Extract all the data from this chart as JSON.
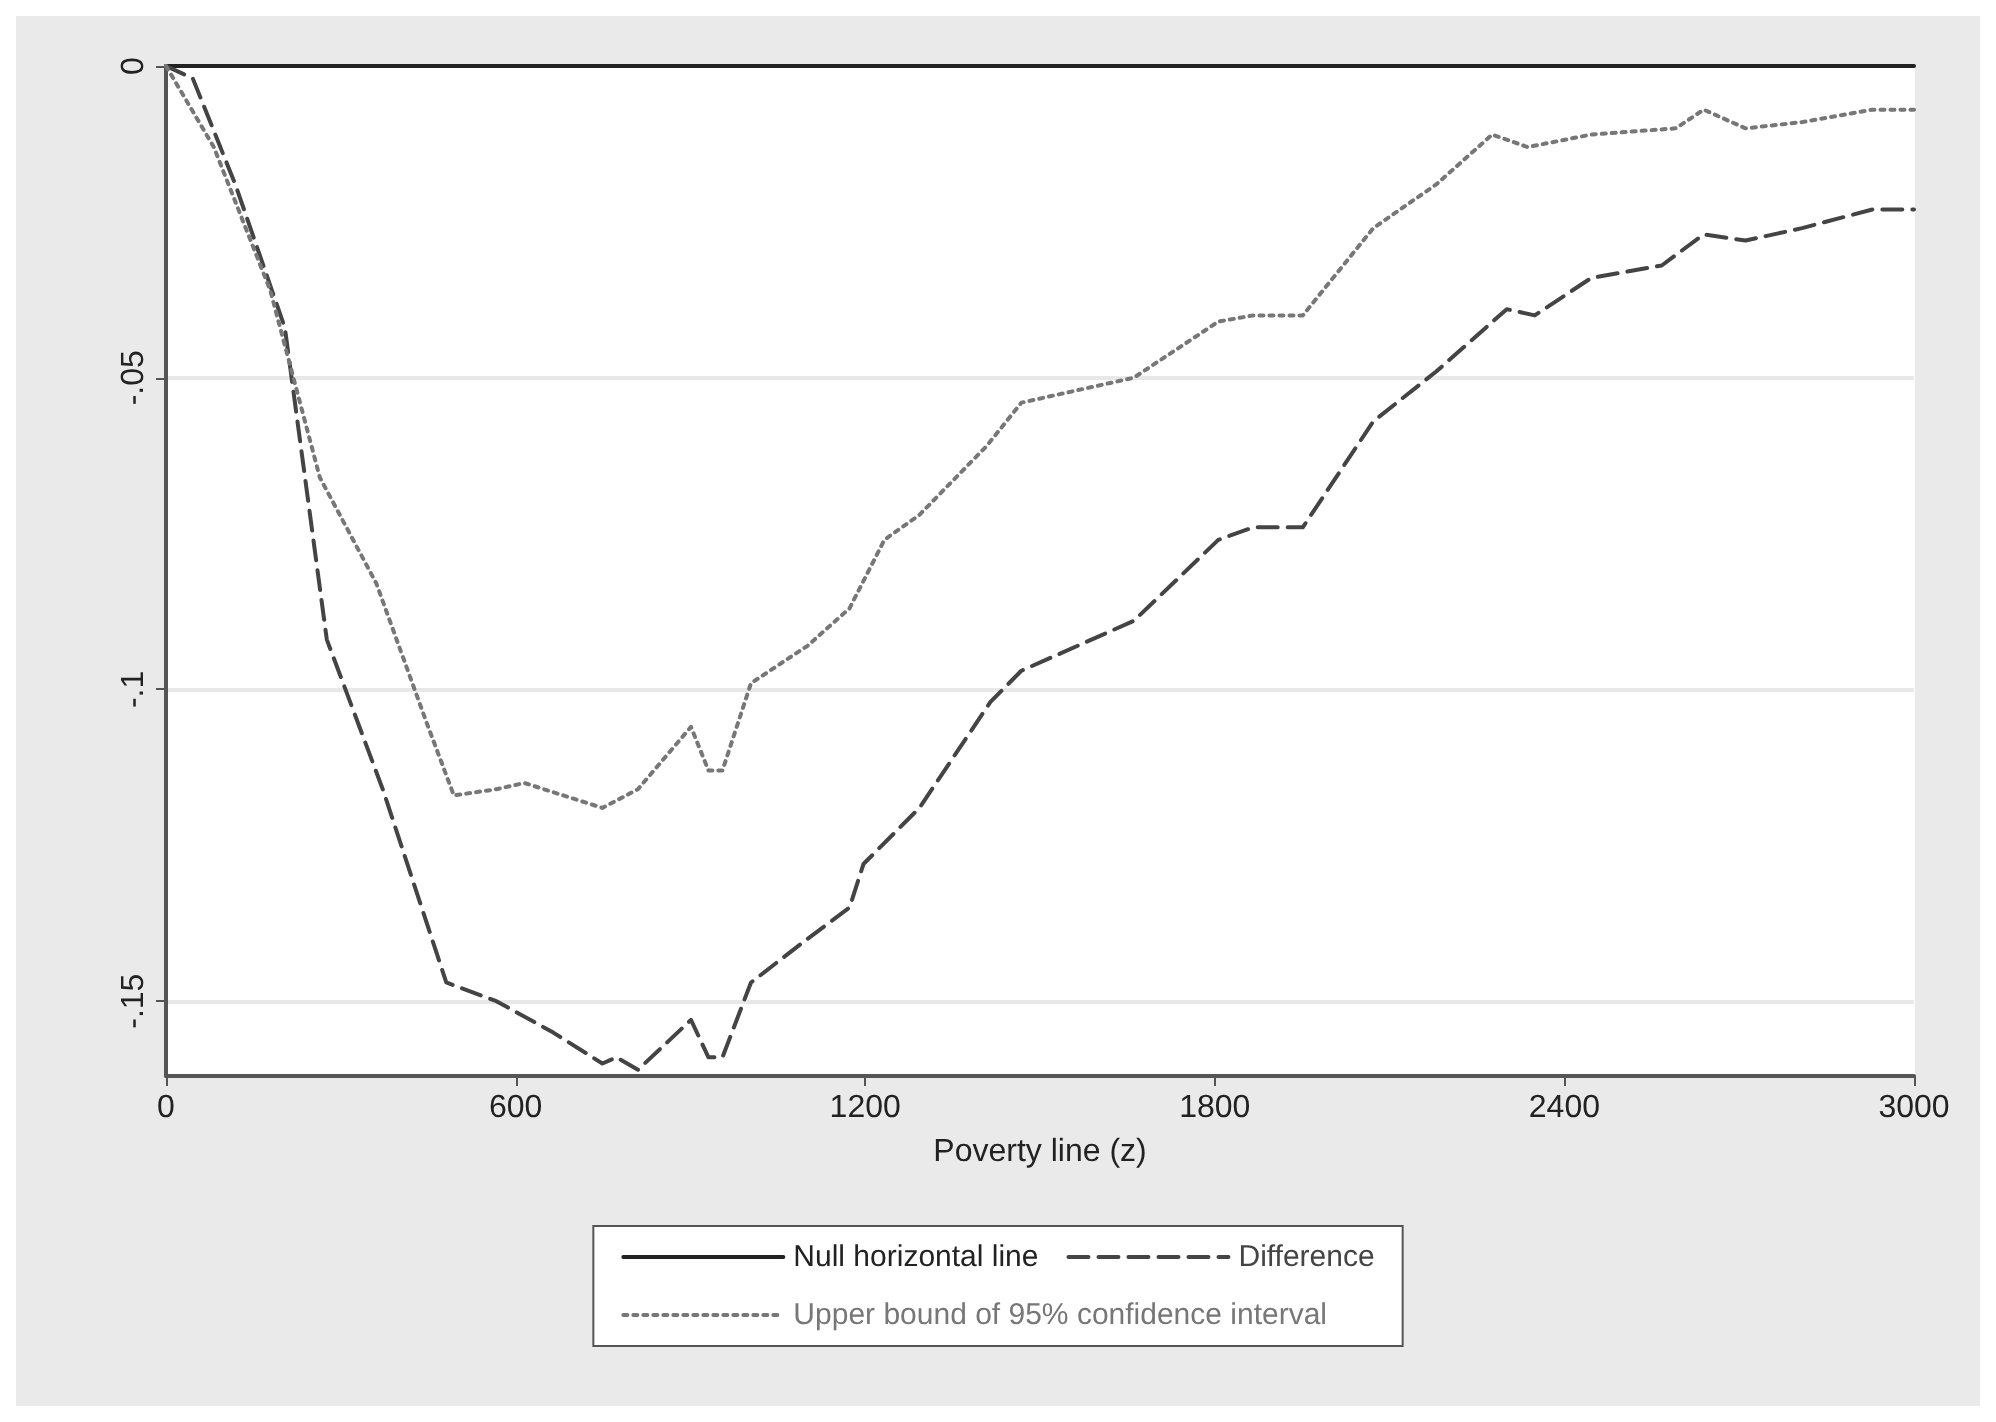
{
  "chart_data": {
    "type": "line",
    "xlabel": "Poverty line (z)",
    "xlim": [
      0,
      3000
    ],
    "xticks": [
      0,
      600,
      1200,
      1800,
      2400,
      3000
    ],
    "ylim": [
      -0.162,
      0
    ],
    "yticks": [
      0,
      {
        "value": -0.05,
        "label": "-.05"
      },
      {
        "value": -0.1,
        "label": "-.1"
      },
      {
        "value": -0.15,
        "label": "-.15"
      }
    ],
    "grid": "y",
    "legend": "bottom",
    "marker": "none",
    "series": [
      {
        "name": "Null horizontal line",
        "color": "#222222",
        "line_style": "solid",
        "x": [
          0,
          3000
        ],
        "values": [
          0,
          0
        ]
      },
      {
        "name": "Difference",
        "color": "#444444",
        "line_style": "dashed",
        "x": [
          0,
          46,
          119,
          204,
          276,
          372,
          481,
          567,
          664,
          749,
          773,
          810,
          901,
          931,
          955,
          1004,
          1101,
          1173,
          1197,
          1293,
          1415,
          1468,
          1661,
          1806,
          1866,
          1951,
          2072,
          2180,
          2301,
          2349,
          2446,
          2567,
          2639,
          2711,
          2808,
          2929,
          3000
        ],
        "values": [
          0,
          -0.002,
          -0.019,
          -0.042,
          -0.092,
          -0.116,
          -0.147,
          -0.15,
          -0.155,
          -0.16,
          -0.159,
          -0.161,
          -0.153,
          -0.159,
          -0.159,
          -0.147,
          -0.14,
          -0.135,
          -0.128,
          -0.119,
          -0.102,
          -0.097,
          -0.089,
          -0.076,
          -0.074,
          -0.074,
          -0.057,
          -0.049,
          -0.039,
          -0.04,
          -0.034,
          -0.032,
          -0.027,
          -0.028,
          -0.026,
          -0.023,
          -0.023
        ]
      },
      {
        "name": "Upper bound of 95% confidence interval",
        "color": "#777777",
        "line_style": "dotted",
        "x": [
          0,
          82,
          179,
          264,
          361,
          446,
          494,
          567,
          615,
          749,
          810,
          901,
          931,
          955,
          1004,
          1101,
          1173,
          1233,
          1293,
          1408,
          1468,
          1661,
          1806,
          1866,
          1951,
          2072,
          2180,
          2276,
          2337,
          2446,
          2591,
          2639,
          2711,
          2808,
          2929,
          3000
        ],
        "values": [
          0,
          -0.013,
          -0.036,
          -0.066,
          -0.083,
          -0.105,
          -0.117,
          -0.116,
          -0.115,
          -0.119,
          -0.116,
          -0.106,
          -0.113,
          -0.113,
          -0.099,
          -0.093,
          -0.087,
          -0.076,
          -0.072,
          -0.061,
          -0.054,
          -0.05,
          -0.041,
          -0.04,
          -0.04,
          -0.026,
          -0.019,
          -0.011,
          -0.013,
          -0.011,
          -0.01,
          -0.007,
          -0.01,
          -0.009,
          -0.007,
          -0.007
        ]
      }
    ]
  }
}
